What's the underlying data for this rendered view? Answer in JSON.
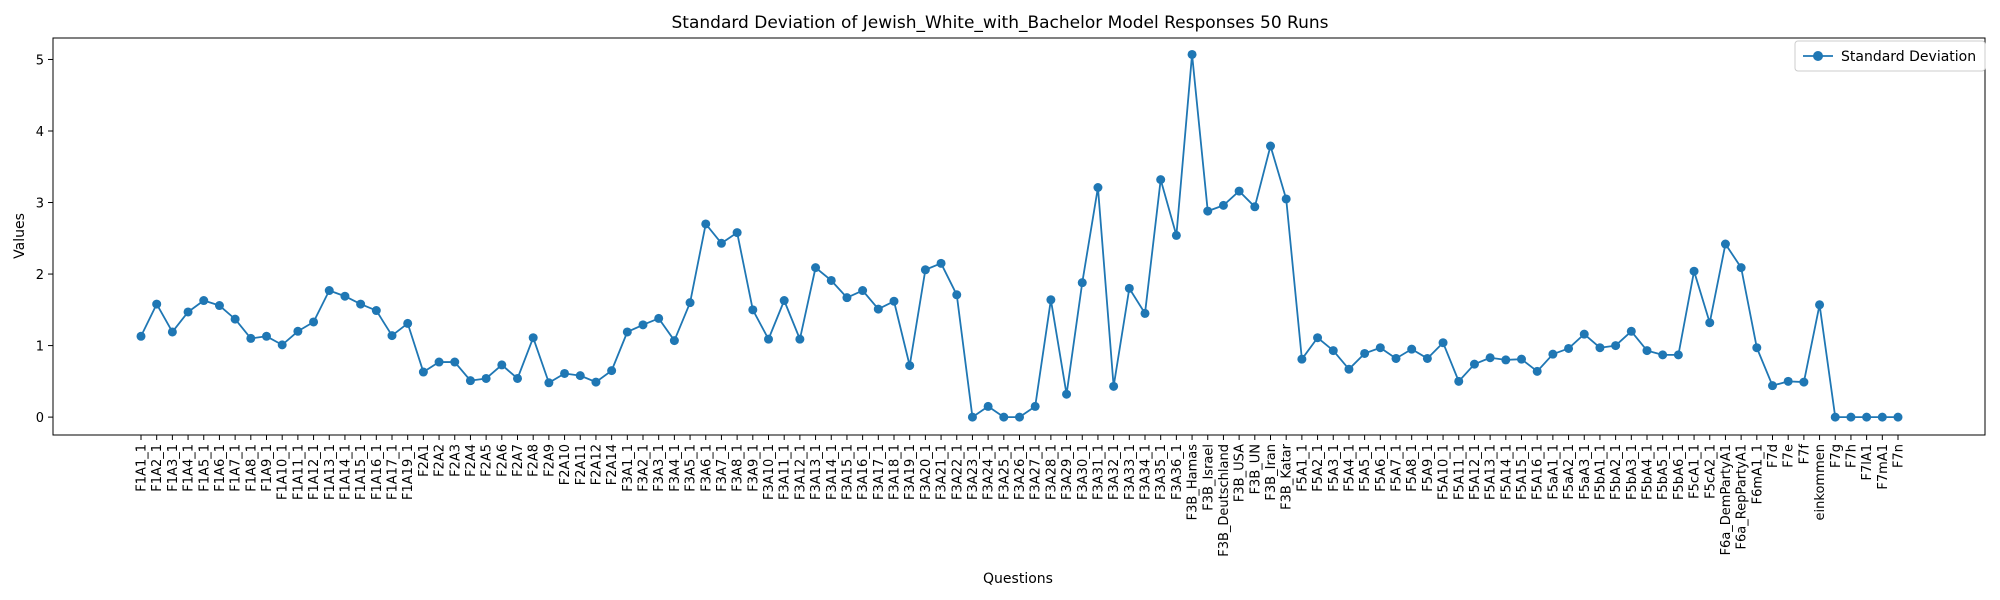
{
  "chart_data": {
    "type": "line",
    "title": "Standard Deviation of Jewish_White_with_Bachelor Model Responses 50 Runs",
    "xlabel": "Questions",
    "ylabel": "Values",
    "ylim": [
      -0.25,
      5.3
    ],
    "yticks": [
      0,
      1,
      2,
      3,
      4,
      5
    ],
    "grid": false,
    "legend": "top-right",
    "color": "#1f77b4",
    "series": [
      {
        "name": "Standard Deviation",
        "x": [
          "F1A1_1",
          "F1A2_1",
          "F1A3_1",
          "F1A4_1",
          "F1A5_1",
          "F1A6_1",
          "F1A7_1",
          "F1A8_1",
          "F1A9_1",
          "F1A10_1",
          "F1A11_1",
          "F1A12_1",
          "F1A13_1",
          "F1A14_1",
          "F1A15_1",
          "F1A16_1",
          "F1A17_1",
          "F1A19_1",
          "F2A1",
          "F2A2",
          "F2A3",
          "F2A4",
          "F2A5",
          "F2A6",
          "F2A7",
          "F2A8",
          "F2A9",
          "F2A10",
          "F2A11",
          "F2A12",
          "F2A14",
          "F3A1_1",
          "F3A2_1",
          "F3A3_1",
          "F3A4_1",
          "F3A5_1",
          "F3A6_1",
          "F3A7_1",
          "F3A8_1",
          "F3A9_1",
          "F3A10_1",
          "F3A11_1",
          "F3A12_1",
          "F3A13_1",
          "F3A14_1",
          "F3A15_1",
          "F3A16_1",
          "F3A17_1",
          "F3A18_1",
          "F3A19_1",
          "F3A20_1",
          "F3A21_1",
          "F3A22_1",
          "F3A23_1",
          "F3A24_1",
          "F3A25_1",
          "F3A26_1",
          "F3A27_1",
          "F3A28_1",
          "F3A29_1",
          "F3A30_1",
          "F3A31_1",
          "F3A32_1",
          "F3A33_1",
          "F3A34_1",
          "F3A35_1",
          "F3A36_1",
          "F3B_Hamas",
          "F3B_Israel",
          "F3B_Deutschland",
          "F3B_USA",
          "F3B_UN",
          "F3B_Iran",
          "F3B_Katar",
          "F5A1_1",
          "F5A2_1",
          "F5A3_1",
          "F5A4_1",
          "F5A5_1",
          "F5A6_1",
          "F5A7_1",
          "F5A8_1",
          "F5A9_1",
          "F5A10_1",
          "F5A11_1",
          "F5A12_1",
          "F5A13_1",
          "F5A14_1",
          "F5A15_1",
          "F5A16_1",
          "F5aA1_1",
          "F5aA2_1",
          "F5aA3_1",
          "F5bA1_1",
          "F5bA2_1",
          "F5bA3_1",
          "F5bA4_1",
          "F5bA5_1",
          "F5bA6_1",
          "F5cA1_1",
          "F5cA2_1",
          "F6a_DemPartyA1",
          "F6a_RepPartyA1",
          "F6mA1_1",
          "F7d",
          "F7e",
          "F7f",
          "einkommen",
          "F7g",
          "F7h",
          "F7lA1",
          "F7mA1",
          "F7n"
        ],
        "values": [
          1.13,
          1.58,
          1.19,
          1.47,
          1.63,
          1.56,
          1.37,
          1.1,
          1.13,
          1.01,
          1.2,
          1.33,
          1.77,
          1.69,
          1.58,
          1.49,
          1.14,
          1.31,
          0.63,
          0.77,
          0.77,
          0.51,
          0.54,
          0.73,
          0.54,
          1.11,
          0.48,
          0.61,
          0.58,
          0.49,
          0.65,
          1.19,
          1.29,
          1.38,
          1.07,
          1.6,
          2.7,
          2.43,
          2.58,
          1.5,
          1.09,
          1.63,
          1.09,
          2.09,
          1.91,
          1.67,
          1.77,
          1.51,
          1.62,
          0.72,
          2.06,
          2.15,
          1.71,
          0.0,
          0.15,
          0.0,
          0.0,
          0.15,
          1.64,
          0.32,
          1.88,
          3.21,
          0.43,
          1.8,
          1.45,
          3.32,
          2.54,
          5.07,
          2.88,
          2.96,
          3.16,
          2.94,
          3.79,
          3.05,
          0.81,
          1.11,
          0.93,
          0.67,
          0.89,
          0.97,
          0.82,
          0.95,
          0.82,
          1.04,
          0.5,
          0.74,
          0.83,
          0.8,
          0.81,
          0.64,
          0.88,
          0.96,
          1.16,
          0.97,
          1.0,
          1.2,
          0.93,
          0.87,
          0.87,
          2.04,
          1.32,
          2.42,
          2.09,
          0.97,
          0.44,
          0.5,
          0.49,
          1.57,
          0.0,
          0.0,
          0.0,
          0.0,
          0.0
        ]
      }
    ]
  }
}
